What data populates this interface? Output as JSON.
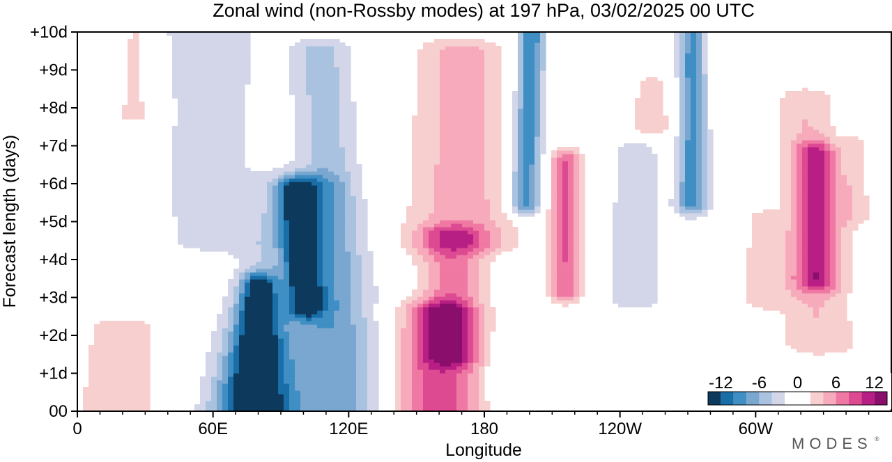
{
  "chart_data": {
    "type": "heatmap",
    "title": "Zonal wind (non-Rossby modes) at 197 hPa,  03/02/2025  00 UTC",
    "xlabel": "Longitude",
    "ylabel": "Forecast length (days)",
    "x_ticks": [
      {
        "lon": 0,
        "label": "0"
      },
      {
        "lon": 60,
        "label": "60E"
      },
      {
        "lon": 120,
        "label": "120E"
      },
      {
        "lon": 180,
        "label": "180"
      },
      {
        "lon": 240,
        "label": "120W"
      },
      {
        "lon": 300,
        "label": "60W"
      }
    ],
    "y_ticks": [
      {
        "day": 0,
        "label": "00"
      },
      {
        "day": 1,
        "label": "+1d"
      },
      {
        "day": 2,
        "label": "+2d"
      },
      {
        "day": 3,
        "label": "+3d"
      },
      {
        "day": 4,
        "label": "+4d"
      },
      {
        "day": 5,
        "label": "+5d"
      },
      {
        "day": 6,
        "label": "+6d"
      },
      {
        "day": 7,
        "label": "+7d"
      },
      {
        "day": 8,
        "label": "+8d"
      },
      {
        "day": 9,
        "label": "+9d"
      },
      {
        "day": 10,
        "label": "+10d"
      }
    ],
    "xlim": [
      0,
      360
    ],
    "ylim": [
      0,
      10
    ],
    "colorbar": {
      "levels": [
        -14,
        -12,
        -10,
        -8,
        -6,
        -4,
        -2,
        2,
        4,
        6,
        8,
        10,
        12,
        14
      ],
      "colors": [
        "#0d3a5c",
        "#1a6ea8",
        "#3f8ec4",
        "#79a7d0",
        "#a9c2df",
        "#d3d6e8",
        "#ffffff",
        "#f8cfcf",
        "#f6aabb",
        "#ef79a3",
        "#dd4a92",
        "#b81f84",
        "#8a0e6c"
      ],
      "labels": [
        {
          "value": -12,
          "label": "-12"
        },
        {
          "value": -6,
          "label": "-6"
        },
        {
          "value": 0,
          "label": "0"
        },
        {
          "value": 6,
          "label": "6"
        },
        {
          "value": 12,
          "label": "12"
        }
      ]
    },
    "features": [
      {
        "lon": 78,
        "day0": 0,
        "day1": 3.3,
        "w0": 11,
        "w1": 5,
        "drift": 2,
        "amp": -13
      },
      {
        "lon": 101,
        "day0": 2.8,
        "day1": 5.8,
        "w0": 5,
        "w1": 6,
        "drift": -4,
        "amp": -10
      },
      {
        "lon": 88,
        "day0": 0,
        "day1": 6,
        "w0": 26,
        "w1": 12,
        "drift": 12,
        "amp": -5
      },
      {
        "lon": 118,
        "day0": 0,
        "day1": 9.5,
        "w0": 12,
        "w1": 9,
        "drift": -10,
        "amp": -5
      },
      {
        "lon": 58,
        "day0": 4.5,
        "day1": 10,
        "w0": 16,
        "w1": 20,
        "drift": 0,
        "amp": -3
      },
      {
        "lon": 198,
        "day0": 5.5,
        "day1": 10,
        "w0": 5,
        "w1": 4,
        "drift": 3,
        "amp": -10
      },
      {
        "lon": 272,
        "day0": 5.5,
        "day1": 10,
        "w0": 5,
        "w1": 4,
        "drift": 0,
        "amp": -9
      },
      {
        "lon": 247,
        "day0": 3,
        "day1": 6.8,
        "w0": 9,
        "w1": 7,
        "drift": 0,
        "amp": -4
      },
      {
        "lon": 187,
        "day0": 0,
        "day1": 1.6,
        "w0": 4,
        "w1": 4,
        "drift": 0,
        "amp": -3
      },
      {
        "lon": 160,
        "day0": 0,
        "day1": 2.6,
        "w0": 15,
        "w1": 11,
        "drift": -1,
        "amp": 9
      },
      {
        "lon": 166,
        "day0": 1.5,
        "day1": 4.6,
        "w0": 9,
        "w1": 11,
        "drift": 0,
        "amp": 7
      },
      {
        "lon": 170,
        "day0": 4.5,
        "day1": 9.5,
        "w0": 18,
        "w1": 14,
        "drift": 0,
        "amp": 5
      },
      {
        "lon": 216,
        "day0": 3.2,
        "day1": 6.6,
        "w0": 5,
        "w1": 5,
        "drift": 0,
        "amp": 8
      },
      {
        "lon": 327,
        "day0": 3.5,
        "day1": 6.8,
        "w0": 7,
        "w1": 6,
        "drift": 0,
        "amp": 8
      },
      {
        "lon": 328,
        "day0": 1.8,
        "day1": 8.2,
        "w0": 12,
        "w1": 9,
        "drift": -6,
        "amp": 4
      },
      {
        "lon": 20,
        "day0": 0,
        "day1": 2.2,
        "w0": 20,
        "w1": 14,
        "drift": 0,
        "amp": 3
      },
      {
        "lon": 26,
        "day0": 7.8,
        "day1": 10,
        "w0": 8,
        "w1": 5,
        "drift": 0,
        "amp": 3
      },
      {
        "lon": 254,
        "day0": 7.5,
        "day1": 8.6,
        "w0": 9,
        "w1": 6,
        "drift": 0,
        "amp": 3
      },
      {
        "lon": 303,
        "day0": 3,
        "day1": 5,
        "w0": 8,
        "w1": 5,
        "drift": 0,
        "amp": 3
      },
      {
        "lon": 344,
        "day0": 5.2,
        "day1": 7,
        "w0": 5,
        "w1": 4,
        "drift": 0,
        "amp": 3
      }
    ]
  },
  "logo": {
    "text": "MODES",
    "mark": "®"
  }
}
